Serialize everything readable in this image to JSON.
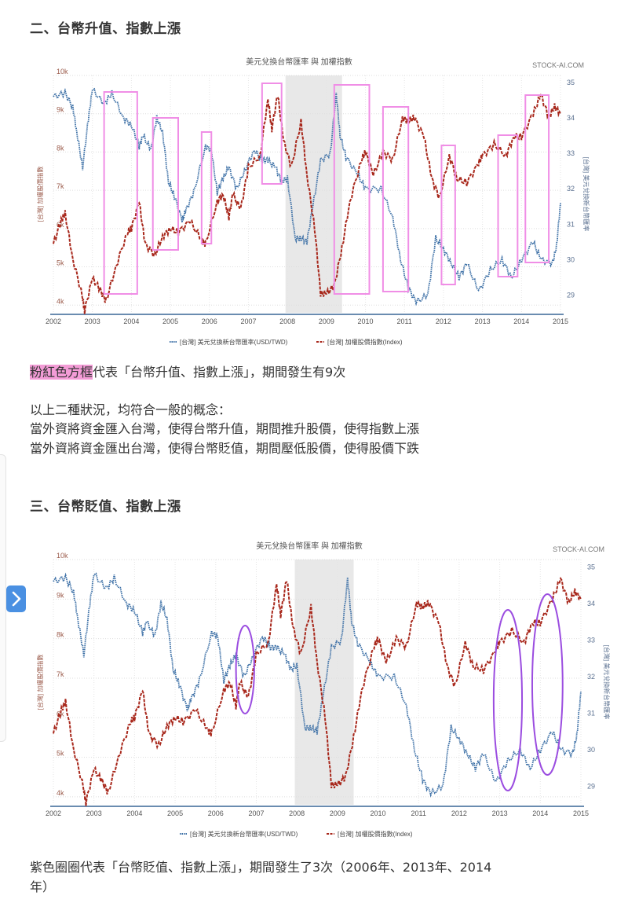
{
  "section2": {
    "heading": "二、台幣升值、指數上漲",
    "caption_highlight": "粉紅色方框",
    "caption_rest": "代表「台幣升值、指數上漲」，期間發生有9次",
    "summary_lines": [
      "以上二種狀況，均符合一般的概念：",
      "當外資將資金匯入台灣，使得台幣升值，期間推升股價，使得指數上漲",
      "當外資將資金匯出台灣，使得台幣貶值，期間壓低股價，使得股價下跌"
    ]
  },
  "section3": {
    "heading": "三、台幣貶值、指數上漲",
    "caption_line1": "紫色圈圈代表「台幣貶值、指數上漲」，期間發生了3次（2006年、2013年、2014",
    "caption_line2": "年）"
  },
  "colors": {
    "usd_twd": "#3a6ea5",
    "index": "#a8281c",
    "pink_box": "#f08ee6",
    "purple_circle": "#9b4de0",
    "recession": "#e8e8e8",
    "side_button": "#4a90e2"
  },
  "chart_data": [
    {
      "type": "line",
      "title": "美元兌換台幣匯率 與 加權指數",
      "watermark": "STOCK-AI.COM",
      "x": [
        "2002",
        "2003",
        "2004",
        "2005",
        "2006",
        "2007",
        "2008",
        "2009",
        "2010",
        "2011",
        "2012",
        "2013",
        "2014",
        "2015"
      ],
      "ylabel_left": "[台灣] 加權股價指數",
      "ylabel_right": "[台灣] 美元兌換新台幣匯率",
      "yticks_left": [
        "4k",
        "5k",
        "6k",
        "7k",
        "8k",
        "9k",
        "10k"
      ],
      "yticks_right": [
        "29",
        "30",
        "31",
        "32",
        "33",
        "34",
        "35"
      ],
      "ylim_left": [
        3800,
        10000
      ],
      "ylim_right": [
        28.5,
        35.2
      ],
      "legend": [
        "[台灣] 美元兌換新台幣匯率(USD/TWD)",
        "[台灣] 加權股價指數(Index)"
      ],
      "legend_position": "bottom",
      "shaded_region": [
        "2007.95",
        "2009.4"
      ],
      "series": [
        {
          "name": "[台灣] 美元兌換新台幣匯率(USD/TWD)",
          "axis": "right",
          "style": "dotted",
          "points": [
            [
              2002.0,
              34.6
            ],
            [
              2002.3,
              34.7
            ],
            [
              2002.5,
              34.3
            ],
            [
              2002.6,
              33.6
            ],
            [
              2002.75,
              32.6
            ],
            [
              2002.9,
              34.0
            ],
            [
              2003.0,
              34.8
            ],
            [
              2003.3,
              34.4
            ],
            [
              2003.5,
              34.7
            ],
            [
              2003.8,
              34.0
            ],
            [
              2004.0,
              33.8
            ],
            [
              2004.2,
              33.2
            ],
            [
              2004.3,
              33.5
            ],
            [
              2004.5,
              33.1
            ],
            [
              2004.65,
              34.0
            ],
            [
              2004.8,
              33.6
            ],
            [
              2004.95,
              32.2
            ],
            [
              2005.1,
              31.8
            ],
            [
              2005.3,
              31.1
            ],
            [
              2005.4,
              31.4
            ],
            [
              2005.6,
              31.9
            ],
            [
              2005.9,
              33.2
            ],
            [
              2006.05,
              33.1
            ],
            [
              2006.2,
              31.9
            ],
            [
              2006.35,
              32.3
            ],
            [
              2006.5,
              32.6
            ],
            [
              2006.7,
              32.0
            ],
            [
              2006.9,
              32.5
            ],
            [
              2007.15,
              33.1
            ],
            [
              2007.35,
              32.8
            ],
            [
              2007.5,
              32.8
            ],
            [
              2007.7,
              32.6
            ],
            [
              2007.85,
              32.2
            ],
            [
              2008.0,
              32.3
            ],
            [
              2008.2,
              30.6
            ],
            [
              2008.35,
              30.6
            ],
            [
              2008.5,
              30.5
            ],
            [
              2008.65,
              31.5
            ],
            [
              2008.85,
              32.8
            ],
            [
              2009.1,
              33.0
            ],
            [
              2009.25,
              34.7
            ],
            [
              2009.35,
              33.5
            ],
            [
              2009.5,
              32.9
            ],
            [
              2009.8,
              32.4
            ],
            [
              2010.0,
              32.0
            ],
            [
              2010.4,
              32.0
            ],
            [
              2010.7,
              31.2
            ],
            [
              2010.9,
              30.0
            ],
            [
              2011.1,
              29.2
            ],
            [
              2011.3,
              28.8
            ],
            [
              2011.6,
              29.0
            ],
            [
              2011.8,
              30.6
            ],
            [
              2012.0,
              30.3
            ],
            [
              2012.2,
              29.9
            ],
            [
              2012.4,
              29.5
            ],
            [
              2012.6,
              29.9
            ],
            [
              2012.9,
              29.1
            ],
            [
              2013.2,
              29.7
            ],
            [
              2013.5,
              30.0
            ],
            [
              2013.75,
              29.5
            ],
            [
              2014.0,
              30.0
            ],
            [
              2014.3,
              30.5
            ],
            [
              2014.5,
              30.0
            ],
            [
              2014.8,
              29.9
            ],
            [
              2014.9,
              30.4
            ],
            [
              2015.0,
              31.6
            ]
          ]
        },
        {
          "name": "[台灣] 加權股價指數(Index)",
          "axis": "left",
          "style": "dashed",
          "points": [
            [
              2002.0,
              5600
            ],
            [
              2002.2,
              6200
            ],
            [
              2002.3,
              6400
            ],
            [
              2002.5,
              5200
            ],
            [
              2002.75,
              4200
            ],
            [
              2002.8,
              3850
            ],
            [
              2003.0,
              4700
            ],
            [
              2003.2,
              4400
            ],
            [
              2003.35,
              4100
            ],
            [
              2003.6,
              5000
            ],
            [
              2003.9,
              5900
            ],
            [
              2004.0,
              6000
            ],
            [
              2004.2,
              6700
            ],
            [
              2004.35,
              5600
            ],
            [
              2004.6,
              5300
            ],
            [
              2004.8,
              5800
            ],
            [
              2005.0,
              6000
            ],
            [
              2005.2,
              5900
            ],
            [
              2005.5,
              6200
            ],
            [
              2005.8,
              5700
            ],
            [
              2005.9,
              5600
            ],
            [
              2006.2,
              6700
            ],
            [
              2006.35,
              6900
            ],
            [
              2006.5,
              6300
            ],
            [
              2006.6,
              6900
            ],
            [
              2006.8,
              6500
            ],
            [
              2007.0,
              7600
            ],
            [
              2007.3,
              7900
            ],
            [
              2007.5,
              9400
            ],
            [
              2007.6,
              8600
            ],
            [
              2007.75,
              9500
            ],
            [
              2007.9,
              8300
            ],
            [
              2008.1,
              7600
            ],
            [
              2008.35,
              8800
            ],
            [
              2008.5,
              7400
            ],
            [
              2008.7,
              6000
            ],
            [
              2008.85,
              4300
            ],
            [
              2009.0,
              4300
            ],
            [
              2009.2,
              4500
            ],
            [
              2009.4,
              5500
            ],
            [
              2009.6,
              6700
            ],
            [
              2009.9,
              7800
            ],
            [
              2010.0,
              8000
            ],
            [
              2010.2,
              7400
            ],
            [
              2010.45,
              8000
            ],
            [
              2010.7,
              7800
            ],
            [
              2010.95,
              8900
            ],
            [
              2011.1,
              8800
            ],
            [
              2011.25,
              8900
            ],
            [
              2011.5,
              8400
            ],
            [
              2011.7,
              7300
            ],
            [
              2011.9,
              6800
            ],
            [
              2012.15,
              7900
            ],
            [
              2012.35,
              7300
            ],
            [
              2012.6,
              7200
            ],
            [
              2012.9,
              7700
            ],
            [
              2013.0,
              7900
            ],
            [
              2013.3,
              8200
            ],
            [
              2013.6,
              7900
            ],
            [
              2013.8,
              8400
            ],
            [
              2014.0,
              8400
            ],
            [
              2014.3,
              9000
            ],
            [
              2014.5,
              9500
            ],
            [
              2014.7,
              8900
            ],
            [
              2014.85,
              9200
            ],
            [
              2015.0,
              9000
            ]
          ]
        }
      ],
      "annotations": {
        "kind": "pink_boxes",
        "count": 9,
        "ranges": [
          [
            "2003.3",
            "2004.15"
          ],
          [
            "2004.55",
            "2005.2"
          ],
          [
            "2005.8",
            "2006.05"
          ],
          [
            "2007.35",
            "2007.85"
          ],
          [
            "2009.2",
            "2010.1"
          ],
          [
            "2010.45",
            "2011.1"
          ],
          [
            "2011.95",
            "2012.3"
          ],
          [
            "2013.4",
            "2013.9"
          ],
          [
            "2014.1",
            "2014.7"
          ]
        ]
      }
    },
    {
      "type": "line",
      "title": "美元兌換台幣匯率 與 加權指數",
      "watermark": "STOCK-AI.COM",
      "x": [
        "2002",
        "2003",
        "2004",
        "2005",
        "2006",
        "2007",
        "2008",
        "2009",
        "2010",
        "2011",
        "2012",
        "2013",
        "2014",
        "2015"
      ],
      "ylabel_left": "[台灣] 加權股價指數",
      "ylabel_right": "[台灣] 美元兌換新台幣匯率",
      "yticks_left": [
        "4k",
        "5k",
        "6k",
        "7k",
        "8k",
        "9k",
        "10k"
      ],
      "yticks_right": [
        "29",
        "30",
        "31",
        "32",
        "33",
        "34",
        "35"
      ],
      "legend": [
        "[台灣] 美元兌換新台幣匯率(USD/TWD)",
        "[台灣] 加權股價指數(Index)"
      ],
      "legend_position": "bottom",
      "shaded_region": [
        "2007.95",
        "2009.4"
      ],
      "annotations": {
        "kind": "purple_circles",
        "count": 3,
        "ranges": [
          [
            "2006.5",
            "2006.95"
          ],
          [
            "2012.85",
            "2013.55"
          ],
          [
            "2013.8",
            "2014.55"
          ]
        ]
      }
    }
  ]
}
